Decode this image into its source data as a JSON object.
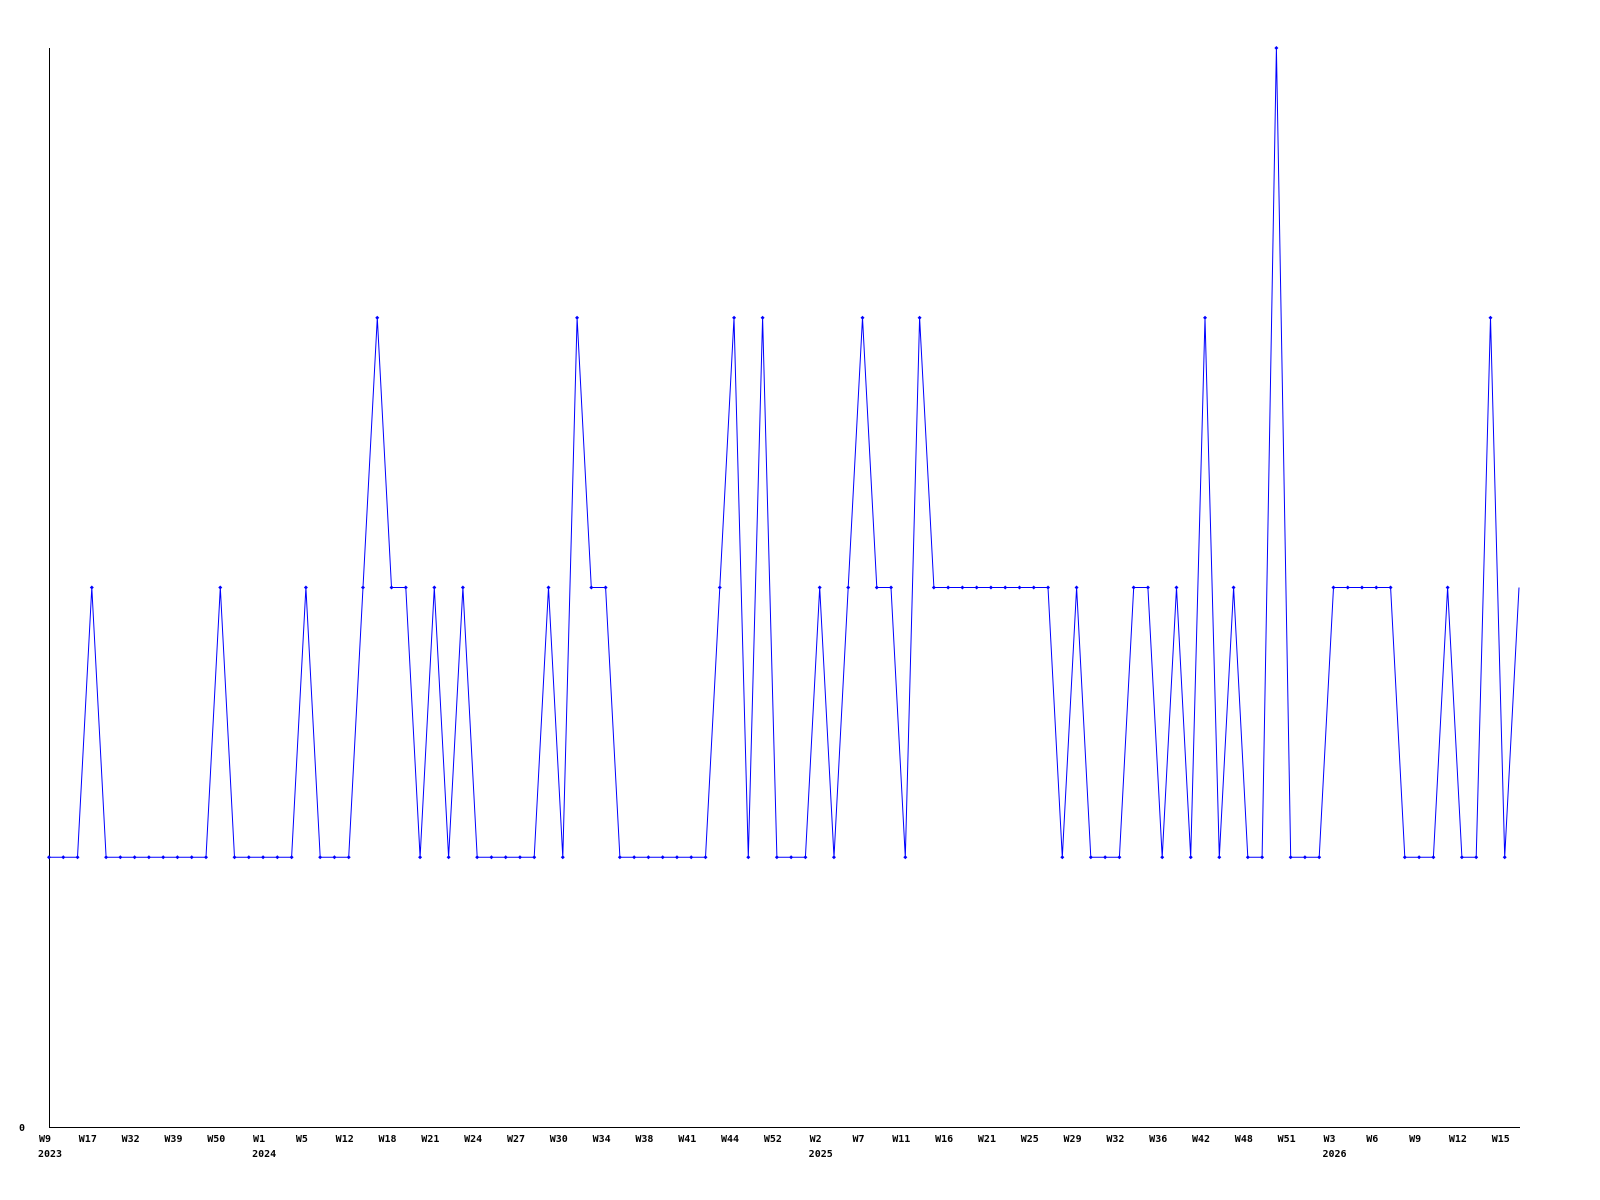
{
  "chart_data": {
    "type": "line",
    "ylim": [
      0,
      4
    ],
    "y_tick_labels": [
      "0"
    ],
    "grid": false,
    "colors": {
      "series": "#0000ff",
      "axis": "#000000"
    },
    "values": [
      1,
      1,
      1,
      2,
      1,
      1,
      1,
      1,
      1,
      1,
      1,
      1,
      2,
      1,
      1,
      1,
      1,
      1,
      2,
      1,
      1,
      1,
      2,
      3,
      2,
      2,
      1,
      2,
      1,
      2,
      1,
      1,
      1,
      1,
      1,
      2,
      1,
      3,
      2,
      2,
      1,
      1,
      1,
      1,
      1,
      1,
      1,
      2,
      3,
      1,
      3,
      1,
      1,
      1,
      2,
      1,
      2,
      3,
      2,
      2,
      1,
      3,
      2,
      2,
      2,
      2,
      2,
      2,
      2,
      2,
      2,
      1,
      2,
      1,
      1,
      1,
      2,
      2,
      1,
      2,
      1,
      3,
      1,
      2,
      1,
      1,
      4,
      1,
      1,
      1,
      2,
      2,
      2,
      2,
      2,
      1,
      1,
      1,
      2,
      1,
      1,
      3,
      1,
      2
    ],
    "x_tick_labels": [
      {
        "index": 0,
        "label": "W9"
      },
      {
        "index": 3,
        "label": "W17"
      },
      {
        "index": 6,
        "label": "W32"
      },
      {
        "index": 9,
        "label": "W39"
      },
      {
        "index": 12,
        "label": "W50"
      },
      {
        "index": 15,
        "label": "W1"
      },
      {
        "index": 18,
        "label": "W5"
      },
      {
        "index": 21,
        "label": "W12"
      },
      {
        "index": 24,
        "label": "W18"
      },
      {
        "index": 27,
        "label": "W21"
      },
      {
        "index": 30,
        "label": "W24"
      },
      {
        "index": 33,
        "label": "W27"
      },
      {
        "index": 36,
        "label": "W30"
      },
      {
        "index": 39,
        "label": "W34"
      },
      {
        "index": 42,
        "label": "W38"
      },
      {
        "index": 45,
        "label": "W41"
      },
      {
        "index": 48,
        "label": "W44"
      },
      {
        "index": 51,
        "label": "W52"
      },
      {
        "index": 54,
        "label": "W2"
      },
      {
        "index": 57,
        "label": "W7"
      },
      {
        "index": 60,
        "label": "W11"
      },
      {
        "index": 63,
        "label": "W16"
      },
      {
        "index": 66,
        "label": "W21"
      },
      {
        "index": 69,
        "label": "W25"
      },
      {
        "index": 72,
        "label": "W29"
      },
      {
        "index": 75,
        "label": "W32"
      },
      {
        "index": 78,
        "label": "W36"
      },
      {
        "index": 81,
        "label": "W42"
      },
      {
        "index": 84,
        "label": "W48"
      },
      {
        "index": 87,
        "label": "W51"
      },
      {
        "index": 90,
        "label": "W3"
      },
      {
        "index": 93,
        "label": "W6"
      },
      {
        "index": 96,
        "label": "W9"
      },
      {
        "index": 99,
        "label": "W12"
      },
      {
        "index": 102,
        "label": "W15"
      }
    ],
    "year_labels": [
      {
        "index": 0,
        "label": "2023"
      },
      {
        "index": 15,
        "label": "2024"
      },
      {
        "index": 54,
        "label": "2025"
      },
      {
        "index": 90,
        "label": "2026"
      }
    ]
  }
}
